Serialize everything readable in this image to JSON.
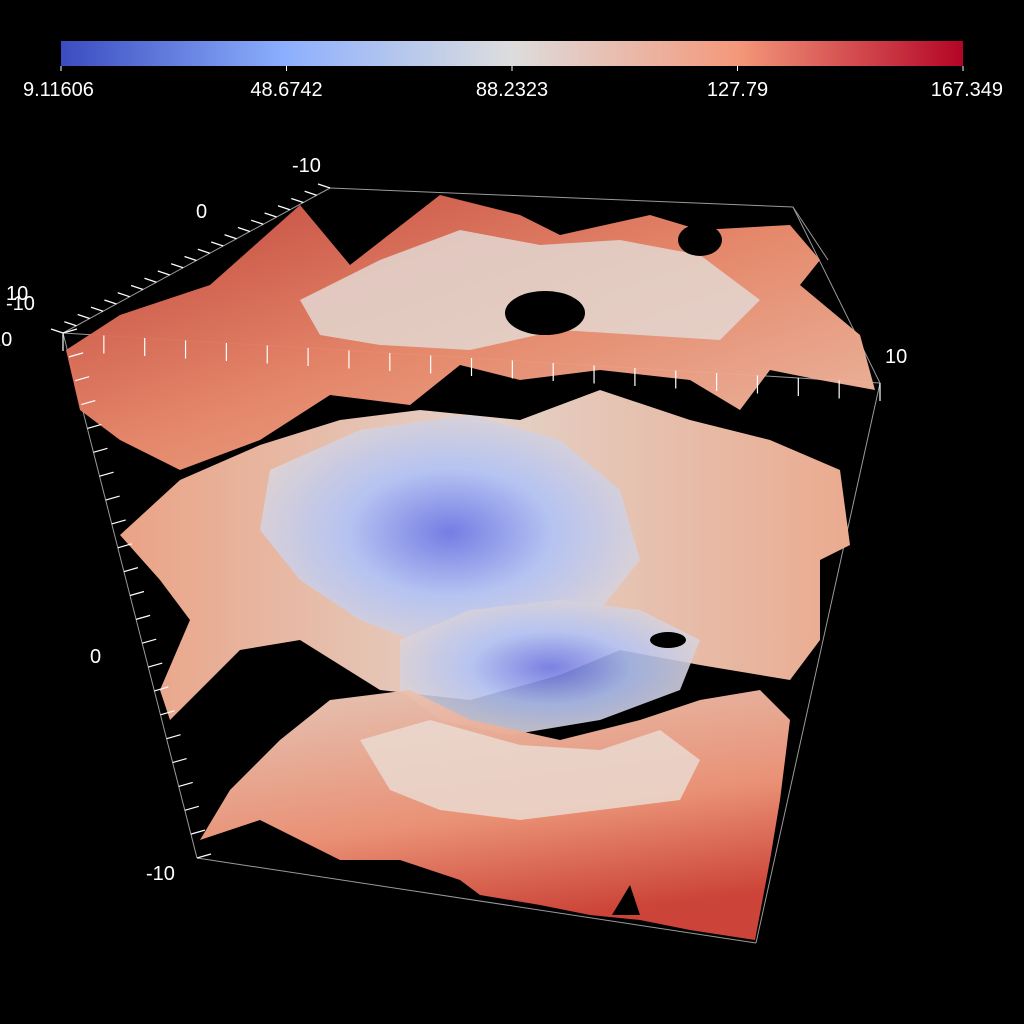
{
  "chart_data": {
    "type": "isosurface-3d",
    "colormap": "coolwarm",
    "colorbar": {
      "min": 9.11606,
      "max": 167.349,
      "tick_labels": [
        "9.11606",
        "48.6742",
        "88.2323",
        "127.79",
        "167.349"
      ],
      "colors": [
        "#3b4cc0",
        "#8db0fe",
        "#dddddd",
        "#f4987a",
        "#b40426"
      ]
    },
    "axes": {
      "x": {
        "range": [
          -10,
          10
        ],
        "tick_labels": [
          "-10",
          "10"
        ]
      },
      "y": {
        "range": [
          -10,
          10
        ],
        "tick_labels": [
          "-10",
          "0",
          "10"
        ]
      },
      "z": {
        "range": [
          -10,
          10
        ],
        "tick_labels": [
          "-10",
          "0",
          "10"
        ]
      }
    },
    "bounding_box": true,
    "grid": false
  }
}
